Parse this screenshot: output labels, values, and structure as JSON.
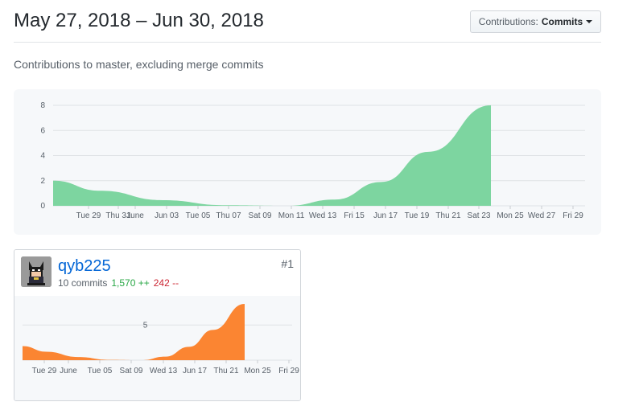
{
  "header": {
    "title": "May 27, 2018 – Jun 30, 2018",
    "contributions_label": "Contributions:",
    "contributions_value": "Commits"
  },
  "subtitle": "Contributions to master, excluding merge commits",
  "chart_data": [
    {
      "type": "area",
      "color": "#7dd5a0",
      "y_ticks": [
        0,
        2,
        4,
        6,
        8
      ],
      "ylim": [
        0,
        8
      ],
      "x_tick_labels": [
        "Tue 29",
        "Thu 31",
        "June",
        "Jun 03",
        "Tue 05",
        "Thu 07",
        "Sat 09",
        "Mon 11",
        "Wed 13",
        "Fri 15",
        "Jun 17",
        "Tue 19",
        "Thu 21",
        "Sat 23",
        "Mon 25",
        "Wed 27",
        "Fri 29"
      ],
      "x": [
        "2018-05-27",
        "2018-05-30",
        "2018-06-03",
        "2018-06-07",
        "2018-06-11",
        "2018-06-14",
        "2018-06-17",
        "2018-06-20",
        "2018-06-24"
      ],
      "y": [
        2,
        1.2,
        0.45,
        0.05,
        0,
        0.5,
        1.9,
        4.3,
        8
      ]
    },
    {
      "type": "area",
      "color": "#fb8532",
      "y_ticks": [
        5
      ],
      "ylim": [
        0,
        8
      ],
      "x_tick_labels": [
        "Tue 29",
        "June",
        "Tue 05",
        "Sat 09",
        "Wed 13",
        "Jun 17",
        "Thu 21",
        "Mon 25",
        "Fri 29"
      ],
      "x": [
        "2018-05-27",
        "2018-05-30",
        "2018-06-03",
        "2018-06-07",
        "2018-06-11",
        "2018-06-14",
        "2018-06-17",
        "2018-06-20",
        "2018-06-24"
      ],
      "y": [
        2,
        1.2,
        0.45,
        0.05,
        0,
        0.5,
        1.9,
        4.3,
        8
      ]
    }
  ],
  "contributor": {
    "username": "qyb225",
    "commits": "10 commits",
    "additions": "1,570 ++",
    "deletions": "242 --",
    "rank": "#1"
  },
  "colors": {
    "link": "#0366d6",
    "add": "#28a745",
    "del": "#cb2431"
  }
}
